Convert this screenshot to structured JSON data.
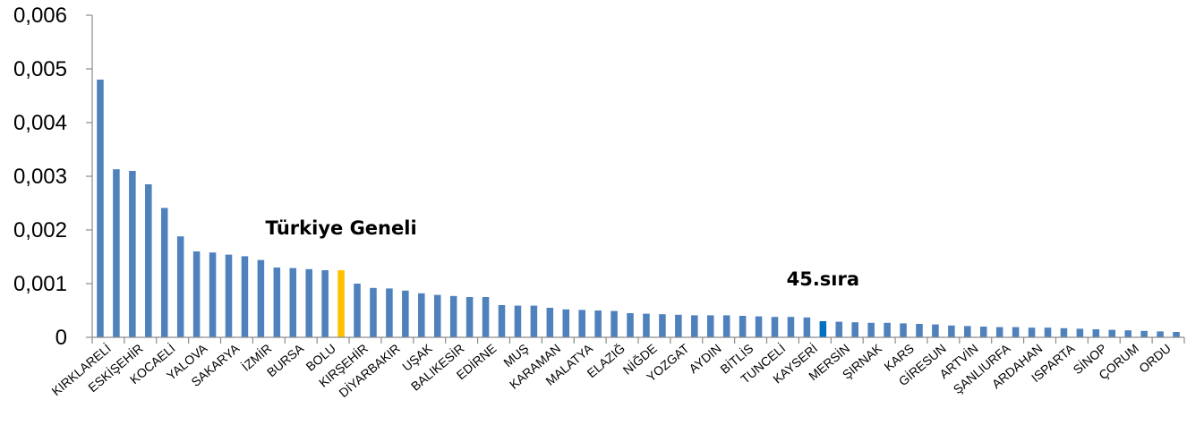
{
  "chart_data": {
    "type": "bar",
    "ylim": [
      0,
      0.006
    ],
    "yticks": [
      "0",
      "0,001",
      "0,002",
      "0,003",
      "0,004",
      "0,005",
      "0,006"
    ],
    "grid": false,
    "colors": {
      "bar": "#4F81BD",
      "national": "#FFC000",
      "mersin": "#0070C0",
      "axis": "#8C8C8C"
    },
    "annotations": [
      {
        "text": "Türkiye Geneli",
        "anchor_index": 15
      },
      {
        "text": "45.sıra",
        "anchor_index": 45
      }
    ],
    "categories": [
      "KIRKLARELİ",
      "",
      "ESKİŞEHİR",
      "",
      "KOCAELİ",
      "",
      "YALOVA",
      "",
      "SAKARYA",
      "",
      "İZMİR",
      "",
      "BURSA",
      "",
      "BOLU",
      "",
      "KIRŞEHİR",
      "",
      "DİYARBAKIR",
      "",
      "UŞAK",
      "",
      "BALIKESİR",
      "",
      "EDİRNE",
      "",
      "MUŞ",
      "",
      "KARAMAN",
      "",
      "MALATYA",
      "",
      "ELAZIĞ",
      "",
      "NİĞDE",
      "",
      "YOZGAT",
      "",
      "AYDIN",
      "",
      "BİTLİS",
      "",
      "TUNCELİ",
      "",
      "KAYSERİ",
      "",
      "MERSİN",
      "",
      "ŞIRNAK",
      "",
      "KARS",
      "",
      "GİRESUN",
      "",
      "ARTVİN",
      "",
      "ŞANLIURFA",
      "",
      "ARDAHAN",
      "",
      "ISPARTA",
      "",
      "SİNOP",
      "",
      "ÇORUM",
      "",
      "ORDU",
      ""
    ],
    "values": [
      0.0048,
      0.00313,
      0.0031,
      0.00285,
      0.00241,
      0.00188,
      0.0016,
      0.00158,
      0.00154,
      0.00151,
      0.00144,
      0.0013,
      0.00129,
      0.00127,
      0.00125,
      0.00125,
      0.001,
      0.00092,
      0.00091,
      0.00087,
      0.00082,
      0.00079,
      0.00077,
      0.00075,
      0.00075,
      0.0006,
      0.00059,
      0.00059,
      0.00055,
      0.00052,
      0.00051,
      0.0005,
      0.00049,
      0.00045,
      0.00044,
      0.00043,
      0.00042,
      0.00041,
      0.00041,
      0.00041,
      0.0004,
      0.00039,
      0.00038,
      0.00038,
      0.00037,
      0.0003,
      0.00029,
      0.00028,
      0.00027,
      0.00027,
      0.00026,
      0.00025,
      0.00024,
      0.00022,
      0.00021,
      0.0002,
      0.00019,
      0.00019,
      0.00018,
      0.00018,
      0.00017,
      0.00016,
      0.00015,
      0.00014,
      0.00013,
      0.00012,
      0.00011,
      0.0001
    ],
    "highlight": {
      "15": "national",
      "45": "mersin"
    }
  }
}
